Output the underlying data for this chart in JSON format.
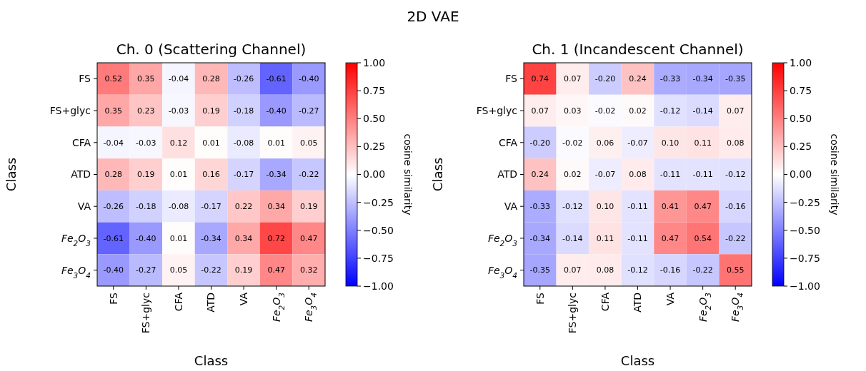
{
  "chart_data": [
    {
      "type": "heatmap",
      "title": "Ch. 0 (Scattering Channel)",
      "xlabel": "Class",
      "ylabel": "Class",
      "clabel": "cosine similarity",
      "annotations": [
        "2D VAE"
      ],
      "categories": [
        "FS",
        "FS+glyc",
        "CFA",
        "ATD",
        "VA",
        "Fe$_{2}$O$_{3}$",
        "Fe$_{3}$O$_{4}$"
      ],
      "y_categories": [
        "FS",
        "FS+glyc",
        "CFA",
        "ATD",
        "VA",
        "Fe$_{2}$O$_{3}$",
        "Fe$_{3}$O$_{4}$"
      ],
      "cells": [
        [
          0.52,
          0.35,
          -0.04,
          0.28,
          -0.26,
          -0.61,
          -0.4
        ],
        [
          0.35,
          0.23,
          -0.03,
          0.19,
          -0.18,
          -0.4,
          -0.27
        ],
        [
          -0.04,
          -0.03,
          0.12,
          0.01,
          -0.08,
          0.01,
          0.05
        ],
        [
          0.28,
          0.19,
          0.01,
          0.16,
          -0.17,
          -0.34,
          -0.22
        ],
        [
          -0.26,
          -0.18,
          -0.08,
          -0.17,
          0.22,
          0.34,
          0.19
        ],
        [
          -0.61,
          -0.4,
          0.01,
          -0.34,
          0.34,
          0.72,
          0.47
        ],
        [
          -0.4,
          -0.27,
          0.05,
          -0.22,
          0.19,
          0.47,
          0.32
        ]
      ],
      "cell_labels": [
        [
          "0.52",
          "0.35",
          "-0.04",
          "0.28",
          "-0.26",
          "-0.61",
          "-0.40"
        ],
        [
          "0.35",
          "0.23",
          "-0.03",
          "0.19",
          "-0.18",
          "-0.40",
          "-0.27"
        ],
        [
          "-0.04",
          "-0.03",
          "0.12",
          "0.01",
          "-0.08",
          "0.01",
          "0.05"
        ],
        [
          "0.28",
          "0.19",
          "0.01",
          "0.16",
          "-0.17",
          "-0.34",
          "-0.22"
        ],
        [
          "-0.26",
          "-0.18",
          "-0.08",
          "-0.17",
          "0.22",
          "0.34",
          "0.19"
        ],
        [
          "-0.61",
          "-0.40",
          "0.01",
          "-0.34",
          "0.34",
          "0.72",
          "0.47"
        ],
        [
          "-0.40",
          "-0.27",
          "0.05",
          "-0.22",
          "0.19",
          "0.47",
          "0.32"
        ]
      ],
      "clim": [
        -1,
        1
      ],
      "cticks": [
        {
          "value": -1,
          "label": "−1.00"
        },
        {
          "value": -0.75,
          "label": "−0.75"
        },
        {
          "value": -0.5,
          "label": "−0.50"
        },
        {
          "value": -0.25,
          "label": "−0.25"
        },
        {
          "value": 0,
          "label": "0.00"
        },
        {
          "value": 0.25,
          "label": "0.25"
        },
        {
          "value": 0.5,
          "label": "0.50"
        },
        {
          "value": 0.75,
          "label": "0.75"
        },
        {
          "value": 1,
          "label": "1.00"
        }
      ],
      "data_labels": true
    },
    {
      "type": "heatmap",
      "title": "Ch. 1 (Incandescent Channel)",
      "xlabel": "Class",
      "ylabel": "Class",
      "clabel": "cosine similarity",
      "categories": [
        "FS",
        "FS+glyc",
        "CFA",
        "ATD",
        "VA",
        "Fe$_{2}$O$_{3}$",
        "Fe$_{3}$O$_{4}$"
      ],
      "y_categories": [
        "FS",
        "FS+glyc",
        "CFA",
        "ATD",
        "VA",
        "Fe$_{2}$O$_{3}$",
        "Fe$_{3}$O$_{4}$"
      ],
      "cells": [
        [
          0.74,
          0.07,
          -0.2,
          0.24,
          -0.33,
          -0.34,
          -0.35
        ],
        [
          0.07,
          0.03,
          -0.02,
          0.02,
          -0.12,
          -0.14,
          0.07
        ],
        [
          -0.2,
          -0.02,
          0.06,
          -0.07,
          0.1,
          0.11,
          0.08
        ],
        [
          0.24,
          0.02,
          -0.07,
          0.08,
          -0.11,
          -0.11,
          -0.12
        ],
        [
          -0.33,
          -0.12,
          0.1,
          -0.11,
          0.41,
          0.47,
          -0.16
        ],
        [
          -0.34,
          -0.14,
          0.11,
          -0.11,
          0.47,
          0.54,
          -0.22
        ],
        [
          -0.35,
          0.07,
          0.08,
          -0.12,
          -0.16,
          -0.22,
          0.55
        ]
      ],
      "cell_labels": [
        [
          "0.74",
          "0.07",
          "-0.20",
          "0.24",
          "-0.33",
          "-0.34",
          "-0.35"
        ],
        [
          "0.07",
          "0.03",
          "-0.02",
          "0.02",
          "-0.12",
          "-0.14",
          "0.07"
        ],
        [
          "-0.20",
          "-0.02",
          "0.06",
          "-0.07",
          "0.10",
          "0.11",
          "0.08"
        ],
        [
          "0.24",
          "0.02",
          "-0.07",
          "0.08",
          "-0.11",
          "-0.11",
          "-0.12"
        ],
        [
          "-0.33",
          "-0.12",
          "0.10",
          "-0.11",
          "0.41",
          "0.47",
          "-0.16"
        ],
        [
          "-0.34",
          "-0.14",
          "0.11",
          "-0.11",
          "0.47",
          "0.54",
          "-0.22"
        ],
        [
          "-0.35",
          "0.07",
          "0.08",
          "-0.12",
          "-0.16",
          "-0.22",
          "0.55"
        ]
      ],
      "clim": [
        -1,
        1
      ],
      "cticks": [
        {
          "value": -1,
          "label": "−1.00"
        },
        {
          "value": -0.75,
          "label": "−0.75"
        },
        {
          "value": -0.5,
          "label": "−0.50"
        },
        {
          "value": -0.25,
          "label": "−0.25"
        },
        {
          "value": 0,
          "label": "0.00"
        },
        {
          "value": 0.25,
          "label": "0.25"
        },
        {
          "value": 0.5,
          "label": "0.50"
        },
        {
          "value": 0.75,
          "label": "0.75"
        },
        {
          "value": 1,
          "label": "1.00"
        }
      ],
      "data_labels": true
    }
  ]
}
